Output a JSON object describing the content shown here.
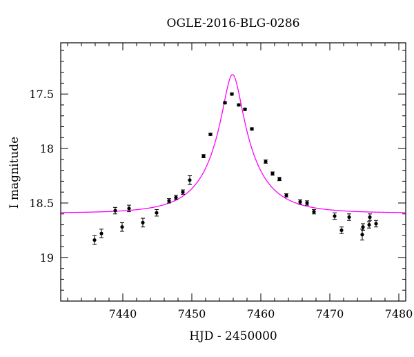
{
  "chart_data": {
    "type": "scatter",
    "title": "OGLE-2016-BLG-0286",
    "xlabel": "HJD - 2450000",
    "ylabel": "I magnitude",
    "xlim": [
      7431,
      7481
    ],
    "ylim": [
      19.4,
      17.03
    ],
    "y_inverted": true,
    "x_ticks": [
      7440,
      7450,
      7460,
      7470,
      7480
    ],
    "x_tick_labels": [
      "7440",
      "7450",
      "7460",
      "7470",
      "7480"
    ],
    "y_ticks": [
      17.5,
      18,
      18.5,
      19
    ],
    "y_tick_labels": [
      "17.5",
      "18",
      "18.5",
      "19"
    ],
    "grid": false,
    "series": [
      {
        "kind": "data_points",
        "color": "#000000",
        "points": [
          {
            "x": 7435.9,
            "y": 18.84,
            "err": 0.04
          },
          {
            "x": 7436.9,
            "y": 18.78,
            "err": 0.04
          },
          {
            "x": 7438.9,
            "y": 18.57,
            "err": 0.03
          },
          {
            "x": 7439.9,
            "y": 18.72,
            "err": 0.04
          },
          {
            "x": 7440.9,
            "y": 18.55,
            "err": 0.03
          },
          {
            "x": 7442.9,
            "y": 18.68,
            "err": 0.04
          },
          {
            "x": 7444.9,
            "y": 18.59,
            "err": 0.03
          },
          {
            "x": 7446.7,
            "y": 18.48,
            "err": 0.02
          },
          {
            "x": 7447.7,
            "y": 18.45,
            "err": 0.02
          },
          {
            "x": 7448.7,
            "y": 18.4,
            "err": 0.02
          },
          {
            "x": 7449.7,
            "y": 18.29,
            "err": 0.04
          },
          {
            "x": 7451.7,
            "y": 18.07,
            "err": 0.015
          },
          {
            "x": 7452.7,
            "y": 17.87,
            "err": 0.01
          },
          {
            "x": 7454.8,
            "y": 17.58,
            "err": 0.01
          },
          {
            "x": 7455.8,
            "y": 17.5,
            "err": 0.01
          },
          {
            "x": 7456.8,
            "y": 17.6,
            "err": 0.01
          },
          {
            "x": 7457.7,
            "y": 17.64,
            "err": 0.01
          },
          {
            "x": 7458.7,
            "y": 17.82,
            "err": 0.01
          },
          {
            "x": 7460.7,
            "y": 18.12,
            "err": 0.015
          },
          {
            "x": 7461.7,
            "y": 18.23,
            "err": 0.015
          },
          {
            "x": 7462.7,
            "y": 18.28,
            "err": 0.015
          },
          {
            "x": 7463.7,
            "y": 18.43,
            "err": 0.015
          },
          {
            "x": 7465.7,
            "y": 18.49,
            "err": 0.02
          },
          {
            "x": 7466.7,
            "y": 18.5,
            "err": 0.02
          },
          {
            "x": 7467.7,
            "y": 18.58,
            "err": 0.02
          },
          {
            "x": 7470.7,
            "y": 18.62,
            "err": 0.03
          },
          {
            "x": 7471.7,
            "y": 18.75,
            "err": 0.03
          },
          {
            "x": 7472.8,
            "y": 18.63,
            "err": 0.03
          },
          {
            "x": 7474.7,
            "y": 18.79,
            "err": 0.05
          },
          {
            "x": 7474.8,
            "y": 18.72,
            "err": 0.03
          },
          {
            "x": 7475.7,
            "y": 18.7,
            "err": 0.03
          },
          {
            "x": 7475.8,
            "y": 18.63,
            "err": 0.03
          },
          {
            "x": 7476.7,
            "y": 18.69,
            "err": 0.03
          }
        ]
      },
      {
        "kind": "model_curve",
        "color": "#ff00ff",
        "model": {
          "t0": 7455.9,
          "u0": 0.2,
          "tE": 6.7,
          "Is": 19.25,
          "Ib": 19.45
        }
      }
    ]
  }
}
